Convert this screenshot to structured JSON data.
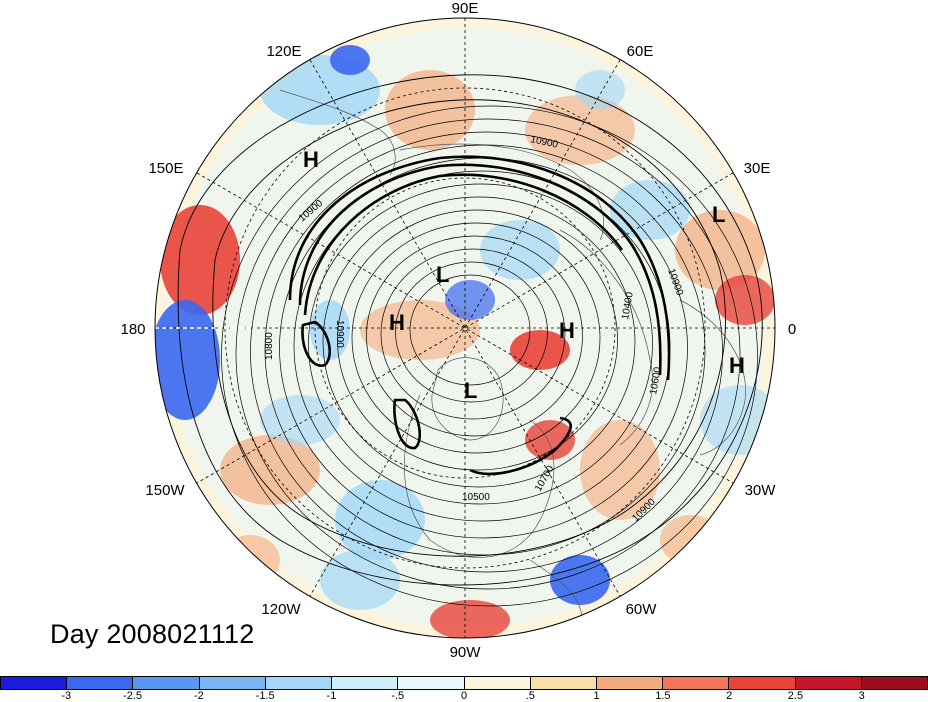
{
  "title": "Day 2008021112",
  "longitude_labels": {
    "top": "90E",
    "upper_left": "120E",
    "upper_right": "60E",
    "left_upper": "150E",
    "right_upper": "30E",
    "left": "180",
    "right": "0",
    "left_lower": "150W",
    "right_lower": "30W",
    "lower_left": "120W",
    "lower_right": "60W",
    "bottom": "90W"
  },
  "pressure_centers": [
    {
      "type": "H",
      "region": "east-siberia"
    },
    {
      "type": "L",
      "region": "east-europe"
    },
    {
      "type": "L",
      "region": "arctic-siberian-side"
    },
    {
      "type": "H",
      "region": "chukchi"
    },
    {
      "type": "H",
      "region": "scandinavia"
    },
    {
      "type": "H",
      "region": "northwest-africa"
    },
    {
      "type": "L",
      "region": "canadian-arctic"
    }
  ],
  "contour_labels": [
    "10900",
    "10900",
    "10900",
    "10800",
    "10900",
    "10400",
    "10600",
    "10700",
    "10500",
    "10900",
    "10700",
    "10400"
  ],
  "colorbar": {
    "ticks": [
      "-3",
      "-2.5",
      "-2",
      "-1.5",
      "-1",
      "-.5",
      "0",
      ".5",
      "1",
      "1.5",
      "2",
      "2.5",
      "3"
    ],
    "colors": [
      "#1b1be0",
      "#3a68f0",
      "#5a97f2",
      "#79b6f5",
      "#a3d7f7",
      "#cff0fa",
      "#e6f8fc",
      "#fcf4dc",
      "#f9dfa8",
      "#f5ab7d",
      "#f47559",
      "#e84339",
      "#c6172a",
      "#9b0e1d"
    ]
  },
  "map_palette": {
    "ocean_neutral": "#e6f8fc",
    "land_neutral": "#fcf4dc",
    "warm": "#f5ab7d",
    "hot": "#e84339",
    "cool": "#a3d7f7",
    "cold": "#3a68f0"
  }
}
